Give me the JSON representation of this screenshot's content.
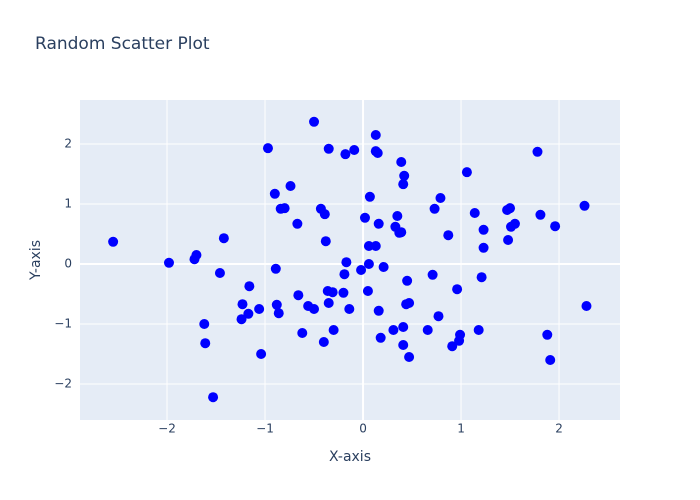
{
  "chart_data": {
    "type": "scatter",
    "title": "Random Scatter Plot",
    "x_label": "X-axis",
    "y_label": "Y-axis",
    "color": "#0000ff",
    "grid": true,
    "plot_bgcolor": "#e5ecf6",
    "xlim": [
      -2.888,
      2.622
    ],
    "ylim": [
      -2.6,
      2.733
    ],
    "xticks": [
      {
        "value": -2,
        "label": "−2"
      },
      {
        "value": -1,
        "label": "−1"
      },
      0,
      1,
      2
    ],
    "yticks": [
      {
        "value": -2,
        "label": "−2"
      },
      {
        "value": -1,
        "label": "−1"
      },
      0,
      1,
      2
    ],
    "x": [
      -2.55,
      -1.98,
      -1.72,
      -1.7,
      -1.42,
      -1.46,
      -1.62,
      -1.61,
      -1.53,
      -1.23,
      -1.24,
      -1.16,
      -1.17,
      -1.06,
      -1.04,
      -0.97,
      -0.9,
      -0.89,
      -0.88,
      -0.86,
      -0.84,
      -0.8,
      -0.74,
      -0.67,
      -0.66,
      -0.62,
      -0.56,
      -0.5,
      -0.5,
      -0.43,
      -0.39,
      -0.38,
      -0.4,
      -0.36,
      -0.31,
      -0.35,
      -0.35,
      -0.3,
      -0.2,
      -0.19,
      -0.17,
      -0.18,
      -0.14,
      -0.09,
      -0.02,
      0.02,
      0.05,
      0.06,
      0.07,
      0.06,
      0.13,
      0.13,
      0.15,
      0.13,
      0.16,
      0.16,
      0.18,
      0.21,
      0.31,
      0.33,
      0.35,
      0.37,
      0.39,
      0.39,
      0.41,
      0.42,
      0.41,
      0.41,
      0.45,
      0.44,
      0.47,
      0.47,
      0.66,
      0.71,
      0.73,
      0.79,
      0.77,
      0.87,
      0.91,
      0.96,
      0.99,
      0.98,
      1.06,
      1.14,
      1.18,
      1.21,
      1.23,
      1.23,
      1.47,
      1.5,
      1.48,
      1.51,
      1.55,
      1.78,
      1.81,
      1.88,
      1.91,
      1.96,
      2.26,
      2.28
    ],
    "y": [
      0.37,
      0.02,
      0.08,
      0.15,
      0.43,
      -0.15,
      -1.0,
      -1.32,
      -2.22,
      -0.67,
      -0.92,
      -0.37,
      -0.83,
      -0.75,
      -1.5,
      1.93,
      1.17,
      -0.08,
      -0.68,
      -0.82,
      0.92,
      0.93,
      1.3,
      0.67,
      -0.52,
      -1.15,
      -0.7,
      -0.75,
      2.37,
      0.92,
      0.83,
      0.38,
      -1.3,
      -0.45,
      -0.47,
      -0.65,
      1.92,
      -1.1,
      -0.48,
      -0.17,
      0.03,
      1.83,
      -0.75,
      1.9,
      -0.1,
      0.77,
      -0.45,
      0.0,
      1.12,
      0.3,
      2.15,
      1.88,
      1.85,
      0.3,
      0.67,
      -0.78,
      -1.23,
      -0.05,
      -1.1,
      0.62,
      0.8,
      0.52,
      0.53,
      1.7,
      1.33,
      1.47,
      -1.05,
      -1.35,
      -0.28,
      -0.67,
      -0.65,
      -1.55,
      -1.1,
      -0.18,
      0.92,
      1.1,
      -0.87,
      0.48,
      -1.37,
      -0.42,
      -1.18,
      -1.28,
      1.53,
      0.85,
      -1.1,
      -0.22,
      0.57,
      0.27,
      0.9,
      0.93,
      0.4,
      0.62,
      0.67,
      1.87,
      0.82,
      -1.18,
      -1.6,
      0.63,
      0.97,
      -0.7
    ]
  }
}
